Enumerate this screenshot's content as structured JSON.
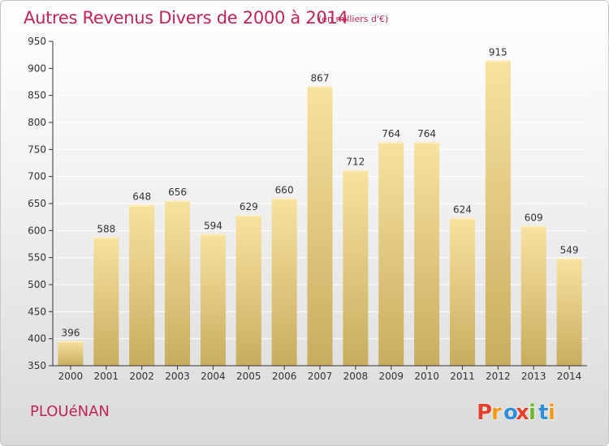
{
  "page": {
    "title": "Autres Revenus Divers de 2000 à 2014",
    "subtitle": "(en milliers d'€)",
    "commune": "PLOUéNAN",
    "logo_text": "Proxiti"
  },
  "colors": {
    "title": "#c0245c",
    "bar_top": "#f8e2a0",
    "bar_bottom": "#c8ad5f",
    "grid": "#ffffff",
    "axis": "#333333",
    "logo": [
      "#e2402a",
      "#f09a16",
      "#2f8fd2",
      "#e2402a",
      "#6bb82a",
      "#2f8fd2",
      "#f09a16"
    ]
  },
  "chart_data": {
    "type": "bar",
    "title": "Autres Revenus Divers de 2000 à 2014",
    "subtitle": "(en milliers d'€)",
    "categories": [
      "2000",
      "2001",
      "2002",
      "2003",
      "2004",
      "2005",
      "2006",
      "2007",
      "2008",
      "2009",
      "2010",
      "2011",
      "2012",
      "2013",
      "2014"
    ],
    "values": [
      396,
      588,
      648,
      656,
      594,
      629,
      660,
      867,
      712,
      764,
      764,
      624,
      915,
      609,
      549
    ],
    "ylim": [
      350,
      950
    ],
    "yticks": [
      350,
      400,
      450,
      500,
      550,
      600,
      650,
      700,
      750,
      800,
      850,
      900,
      950
    ],
    "grid": true,
    "data_labels": true
  }
}
